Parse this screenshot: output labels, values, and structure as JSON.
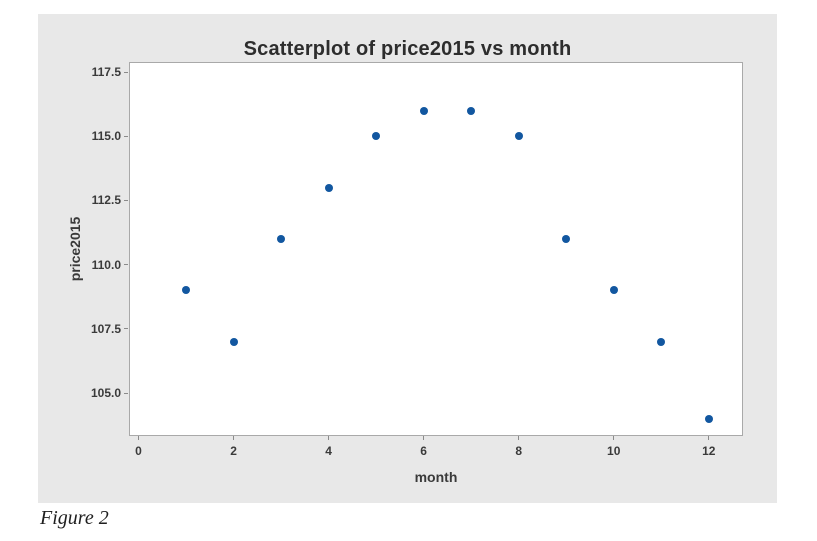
{
  "figure": {
    "caption": "Figure 2"
  },
  "chart_data": {
    "type": "scatter",
    "title": "Scatterplot of price2015 vs month",
    "xlabel": "month",
    "ylabel": "price2015",
    "x": [
      1,
      2,
      3,
      4,
      5,
      6,
      7,
      8,
      9,
      10,
      11,
      12
    ],
    "y": [
      109,
      107,
      111,
      113,
      115,
      116,
      116,
      115,
      111,
      109,
      107,
      104
    ],
    "series_name": "price2015",
    "xlim": [
      -0.2,
      12.72
    ],
    "ylim": [
      103.33,
      117.89
    ],
    "x_ticks": [
      0,
      2,
      4,
      6,
      8,
      10,
      12
    ],
    "x_tick_labels": [
      "0",
      "2",
      "4",
      "6",
      "8",
      "10",
      "12"
    ],
    "y_ticks": [
      105.0,
      107.5,
      110.0,
      112.5,
      115.0,
      117.5
    ],
    "y_tick_labels": [
      "105.0",
      "107.5",
      "110.0",
      "112.5",
      "115.0",
      "117.5"
    ],
    "grid": false,
    "legend": false,
    "colors": {
      "point": "#1257a0",
      "panel_bg": "#e8e8e8",
      "plot_bg": "#ffffff",
      "frame": "#a9a9a9",
      "tick": "#8a8a8a",
      "title_text": "#2d2d2d",
      "label_text": "#3a3a3a"
    }
  }
}
